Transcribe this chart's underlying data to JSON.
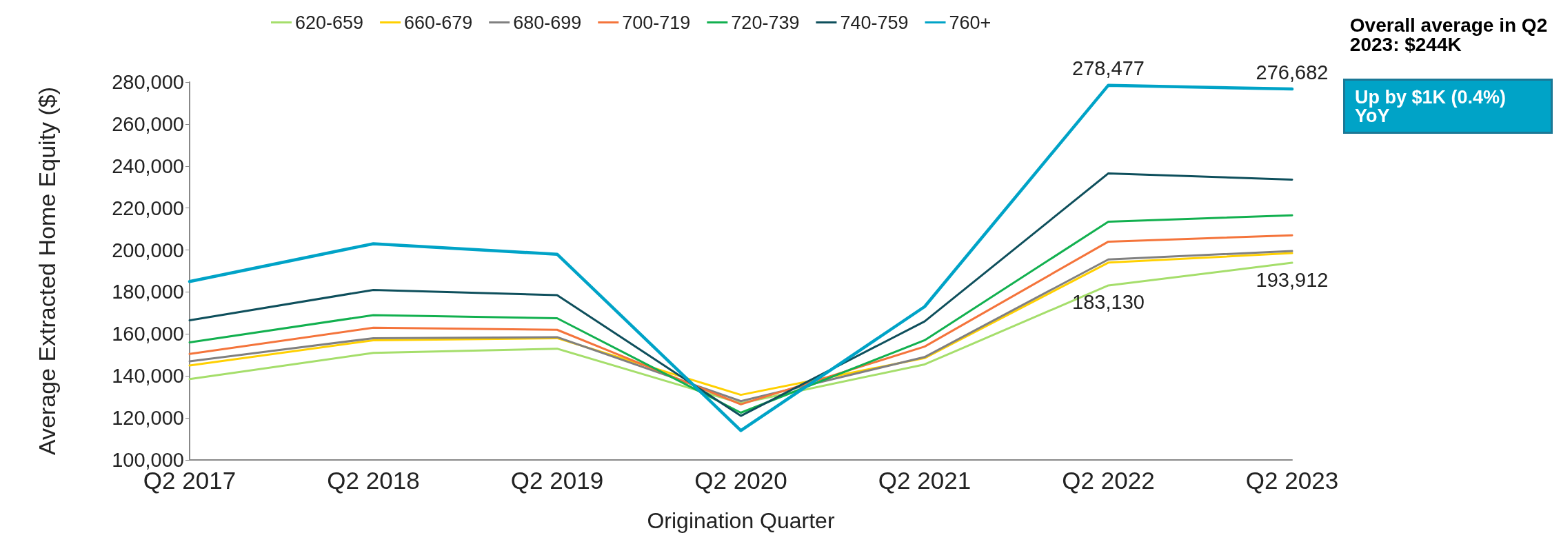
{
  "chart_data": {
    "type": "line",
    "xlabel": "Origination Quarter",
    "ylabel": "Average Extracted Home Equity ($)",
    "categories": [
      "Q2 2017",
      "Q2 2018",
      "Q2 2019",
      "Q2 2020",
      "Q2 2021",
      "Q2 2022",
      "Q2 2023"
    ],
    "ylim": [
      100000,
      280000
    ],
    "yticks": [
      {
        "value": 100000,
        "label": "100,000"
      },
      {
        "value": 120000,
        "label": "120,000"
      },
      {
        "value": 140000,
        "label": "140,000"
      },
      {
        "value": 160000,
        "label": "160,000"
      },
      {
        "value": 180000,
        "label": "180,000"
      },
      {
        "value": 200000,
        "label": "200,000"
      },
      {
        "value": 220000,
        "label": "220,000"
      },
      {
        "value": 240000,
        "label": "240,000"
      },
      {
        "value": 260000,
        "label": "260,000"
      },
      {
        "value": 280000,
        "label": "280,000"
      }
    ],
    "grid": false,
    "legend": "top",
    "marker": "none",
    "line_style": "solid",
    "series": [
      {
        "name": "620-659",
        "color": "#a5de6b",
        "values": [
          138500,
          151000,
          153000,
          127000,
          145500,
          183130,
          193912
        ],
        "value_labels": [
          null,
          null,
          null,
          null,
          null,
          "183,130",
          "193,912"
        ]
      },
      {
        "name": "660-679",
        "color": "#ffd000",
        "values": [
          145000,
          157000,
          158000,
          131000,
          148500,
          194000,
          198500
        ]
      },
      {
        "name": "680-699",
        "color": "#808080",
        "values": [
          147000,
          158000,
          158500,
          128000,
          149000,
          195500,
          199500
        ]
      },
      {
        "name": "700-719",
        "color": "#f4743b",
        "values": [
          150500,
          163000,
          162000,
          126500,
          154000,
          204000,
          207000
        ]
      },
      {
        "name": "720-739",
        "color": "#12b04f",
        "values": [
          156000,
          169000,
          167500,
          122500,
          157000,
          213500,
          216500
        ]
      },
      {
        "name": "740-759",
        "color": "#0e4f5c",
        "values": [
          166500,
          181000,
          178500,
          121000,
          166000,
          236500,
          233500
        ]
      },
      {
        "name": "760+",
        "color": "#00a3c7",
        "values": [
          185000,
          203000,
          198000,
          114000,
          173000,
          278477,
          276682
        ],
        "value_labels": [
          null,
          null,
          null,
          null,
          null,
          "278,477",
          "276,682"
        ]
      }
    ],
    "annotations": [
      "Overall average in Q2 2023: $244K",
      "Up by $1K (0.4%) YoY"
    ]
  }
}
